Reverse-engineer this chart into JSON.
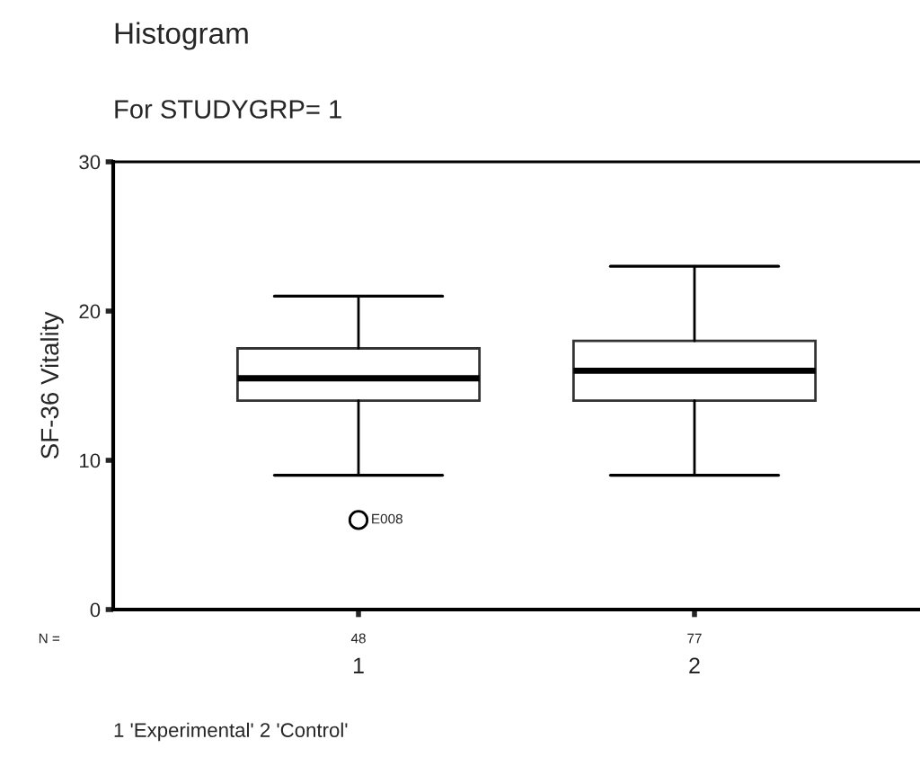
{
  "chart_data": {
    "type": "box",
    "title": "Histogram",
    "subtitle": "For STUDYGRP= 1",
    "ylabel": "SF-36 Vitality",
    "categories": [
      "1",
      "2"
    ],
    "boxes": [
      {
        "low": 9,
        "q1": 14,
        "median": 15.5,
        "q3": 17.5,
        "high": 21,
        "outliers": [
          6
        ]
      },
      {
        "low": 9,
        "q1": 14,
        "median": 16,
        "q3": 18,
        "high": 23
      }
    ],
    "ylim": [
      0,
      30
    ],
    "yticks": [
      0,
      10,
      20,
      30
    ],
    "grid": false,
    "annotations": [
      "N =",
      "48",
      "77",
      "E008",
      "1 'Experimental' 2 'Control'"
    ]
  }
}
